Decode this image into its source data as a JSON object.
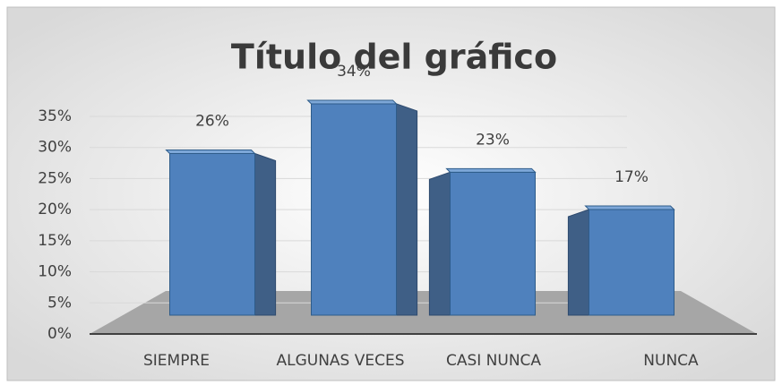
{
  "chart_data": {
    "type": "bar3d",
    "title": "Título del gráfico",
    "categories": [
      "SIEMPRE",
      "ALGUNAS VECES",
      "CASI NUNCA",
      "NUNCA"
    ],
    "values": [
      26,
      34,
      23,
      17
    ],
    "value_labels": [
      "26%",
      "34%",
      "23%",
      "17%"
    ],
    "color": "#4f81bd",
    "ylim": [
      0,
      35
    ],
    "yticks": [
      {
        "value": 0,
        "label": "0%"
      },
      {
        "value": 5,
        "label": "5%"
      },
      {
        "value": 10,
        "label": "10%"
      },
      {
        "value": 15,
        "label": "15%"
      },
      {
        "value": 20,
        "label": "20%"
      },
      {
        "value": 25,
        "label": "25%"
      },
      {
        "value": 30,
        "label": "30%"
      },
      {
        "value": 35,
        "label": "35%"
      }
    ],
    "grid": true
  }
}
